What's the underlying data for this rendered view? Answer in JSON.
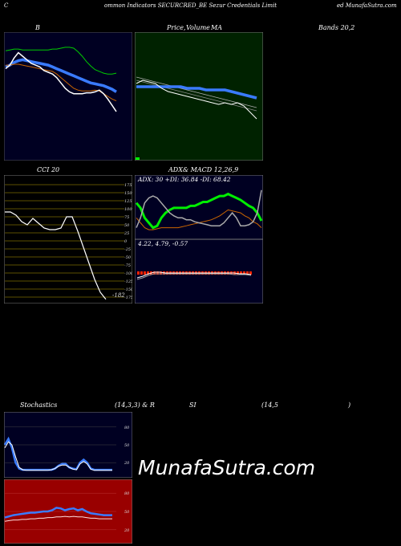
{
  "header": {
    "left": "C",
    "center": "ommon  Indicators SECURCRED_BE Sezur Credentials Limit",
    "right": "ed MunafaSutra.com"
  },
  "titles": {
    "bollinger": "B",
    "price": "Price,",
    "volume": "Volume",
    "ma": "MA",
    "bands": "Bands 20,2",
    "cci": "CCI 20",
    "adx": "ADX",
    "macd": "& MACD 12,26,9",
    "stoch": "Stochastics",
    "stoch_params": "(14,3,3) & R",
    "rsi": "SI",
    "rsi_params": "(14,5",
    "rsi_close": ")"
  },
  "adx_readout": "ADX: 30   +DI: 36.84   -DI: 68.42",
  "macd_readout": "4.22,  4.79,  -0.57",
  "cci_value": "-182",
  "watermark": "MunafaSutra.com",
  "colors": {
    "panel_bg": "#000022",
    "green_bg": "#002200",
    "cci_bg": "#000000",
    "rsi_bg": "#990000",
    "blue": "#3a7bff",
    "orange": "#cc6600",
    "green": "#00cc00",
    "white": "#ffffff"
  },
  "chart_data": [
    {
      "type": "line",
      "title": "B",
      "series": [
        {
          "values": [
            78,
            79,
            80,
            80,
            79,
            79,
            79,
            79,
            79,
            79,
            79,
            80,
            80,
            81,
            82,
            82,
            81,
            77,
            72,
            66,
            61,
            57,
            55,
            53,
            52,
            52,
            53
          ]
        },
        {
          "values": [
            60,
            62,
            65,
            67,
            68,
            67,
            66,
            65,
            64,
            63,
            62,
            60,
            58,
            56,
            54,
            52,
            50,
            48,
            46,
            44,
            42,
            41,
            40,
            39,
            37,
            35,
            32
          ]
        },
        {
          "values": [
            62,
            62,
            63,
            63,
            62,
            61,
            60,
            59,
            58,
            57,
            56,
            55,
            52,
            48,
            44,
            40,
            36,
            34,
            33,
            33,
            33,
            34,
            33,
            30,
            27,
            24,
            22
          ]
        },
        {
          "values": [
            58,
            62,
            70,
            76,
            72,
            68,
            64,
            62,
            60,
            56,
            54,
            52,
            48,
            42,
            36,
            32,
            30,
            30,
            30,
            31,
            31,
            32,
            34,
            30,
            24,
            17,
            10
          ]
        }
      ]
    },
    {
      "type": "line",
      "title": "Price, Volume, MA",
      "series": [
        {
          "values": [
            62,
            61,
            60,
            59,
            58,
            57,
            56,
            55,
            54,
            53,
            52,
            51,
            50,
            49,
            48,
            47,
            46,
            45,
            44,
            43
          ]
        },
        {
          "values": [
            60,
            59,
            58,
            57,
            56,
            55,
            54,
            53,
            52,
            51,
            50,
            49,
            48,
            47,
            46,
            45,
            44,
            43,
            42,
            41
          ]
        },
        {
          "values": [
            56,
            56,
            56,
            56,
            56,
            56,
            56,
            56,
            55,
            55,
            55,
            54,
            54,
            54,
            54,
            53,
            52,
            51,
            50,
            49
          ]
        },
        {
          "values": [
            58,
            60,
            59,
            58,
            55,
            53,
            52,
            51,
            50,
            49,
            48,
            47,
            46,
            45,
            46,
            45,
            46,
            44,
            40,
            36
          ]
        }
      ]
    },
    {
      "type": "line",
      "title": "CCI 20",
      "ylim": [
        -175,
        175
      ],
      "ticks": [
        175,
        150,
        125,
        100,
        75,
        50,
        25,
        0,
        -25,
        -50,
        -75,
        -100,
        -125,
        -150,
        -175
      ],
      "series": [
        {
          "values": [
            90,
            90,
            80,
            60,
            50,
            70,
            55,
            40,
            35,
            35,
            40,
            75,
            75,
            30,
            -20,
            -70,
            -120,
            -160,
            -182
          ]
        }
      ],
      "last_label": "-182"
    },
    {
      "type": "line",
      "title": "ADX & MACD 12,26,9",
      "series": [
        {
          "name": "ADX",
          "values": [
            40,
            35,
            30,
            28,
            28,
            29,
            30,
            30,
            30,
            30,
            30,
            31,
            32,
            33,
            34,
            35,
            36,
            37,
            38,
            40,
            42,
            45,
            48,
            47,
            46,
            45,
            42,
            40,
            36,
            34,
            30
          ]
        },
        {
          "name": "+DI",
          "values": [
            55,
            50,
            40,
            35,
            30,
            32,
            40,
            45,
            48,
            50,
            50,
            50,
            50,
            52,
            52,
            54,
            56,
            56,
            58,
            60,
            62,
            62,
            64,
            62,
            60,
            58,
            55,
            52,
            50,
            45,
            37
          ]
        },
        {
          "name": "-DI",
          "values": [
            30,
            40,
            55,
            60,
            62,
            60,
            55,
            50,
            45,
            42,
            40,
            40,
            38,
            38,
            36,
            35,
            34,
            33,
            32,
            32,
            32,
            35,
            40,
            45,
            40,
            32,
            32,
            33,
            36,
            45,
            68
          ]
        }
      ]
    },
    {
      "type": "line",
      "title": "Stochastics (14,3,3)",
      "ylim": [
        0,
        100
      ],
      "ticks": [
        80,
        50,
        20
      ],
      "series": [
        {
          "values": [
            50,
            60,
            45,
            20,
            10,
            8,
            8,
            8,
            8,
            8,
            8,
            8,
            8,
            8,
            10,
            15,
            18,
            18,
            12,
            10,
            9,
            20,
            25,
            20,
            10,
            8,
            8,
            8,
            8,
            8,
            8
          ]
        },
        {
          "values": [
            45,
            55,
            50,
            30,
            12,
            8,
            7,
            7,
            7,
            7,
            7,
            7,
            7,
            8,
            10,
            14,
            16,
            16,
            12,
            9,
            8,
            18,
            22,
            18,
            9,
            7,
            7,
            7,
            7,
            7,
            7
          ]
        }
      ]
    },
    {
      "type": "line",
      "title": "RSI (14,5)",
      "ylim": [
        0,
        100
      ],
      "ticks": [
        80,
        50,
        20
      ],
      "series": [
        {
          "values": [
            40,
            42,
            44,
            45,
            46,
            47,
            48,
            48,
            49,
            50,
            50,
            52,
            56,
            55,
            52,
            54,
            55,
            52,
            54,
            50,
            47,
            46,
            45,
            44,
            44,
            44
          ]
        },
        {
          "values": [
            34,
            35,
            36,
            36,
            37,
            37,
            38,
            38,
            39,
            39,
            40,
            40,
            41,
            41,
            42,
            41,
            42,
            41,
            41,
            40,
            39,
            39,
            38,
            38,
            38,
            38
          ]
        }
      ]
    }
  ]
}
